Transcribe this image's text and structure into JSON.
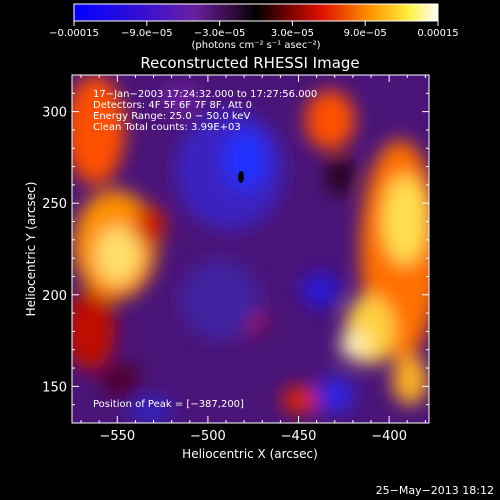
{
  "chart_data": {
    "type": "heatmap",
    "title": "Reconstructed RHESSI Image",
    "xlabel": "Heliocentric X (arcsec)",
    "ylabel": "Heliocentric Y (arcsec)",
    "xlim": [
      -575,
      -378
    ],
    "ylim": [
      130,
      320
    ],
    "x_ticks": [
      -550,
      -500,
      -450,
      -400
    ],
    "y_ticks": [
      150,
      200,
      250,
      300
    ],
    "x_tick_labels": [
      "−550",
      "−500",
      "−450",
      "−400"
    ],
    "y_tick_labels": [
      "150",
      "200",
      "250",
      "300"
    ],
    "colorbar": {
      "range": [
        -0.00015,
        0.00015
      ],
      "tick_labels": [
        "−0.00015",
        "−9.0e−05",
        "−3.0e−05",
        "3.0e−05",
        "9.0e−05",
        "0.00015"
      ],
      "unit_label": "(photons cm⁻² s⁻¹ asec⁻²)"
    },
    "annotations": [
      "17−Jan−2003 17:24:32.000 to 17:27:56.000",
      "Detectors: 4F 5F 6F 7F 8F, Att 0",
      "Energy Range: 25.0 − 50.0 keV",
      "Clean    Total counts: 3.99E+03"
    ],
    "peak_label": "Position of Peak = [−387,200]",
    "peak": [
      -387,
      200
    ],
    "footer_date": "25−May−2013 18:12"
  }
}
